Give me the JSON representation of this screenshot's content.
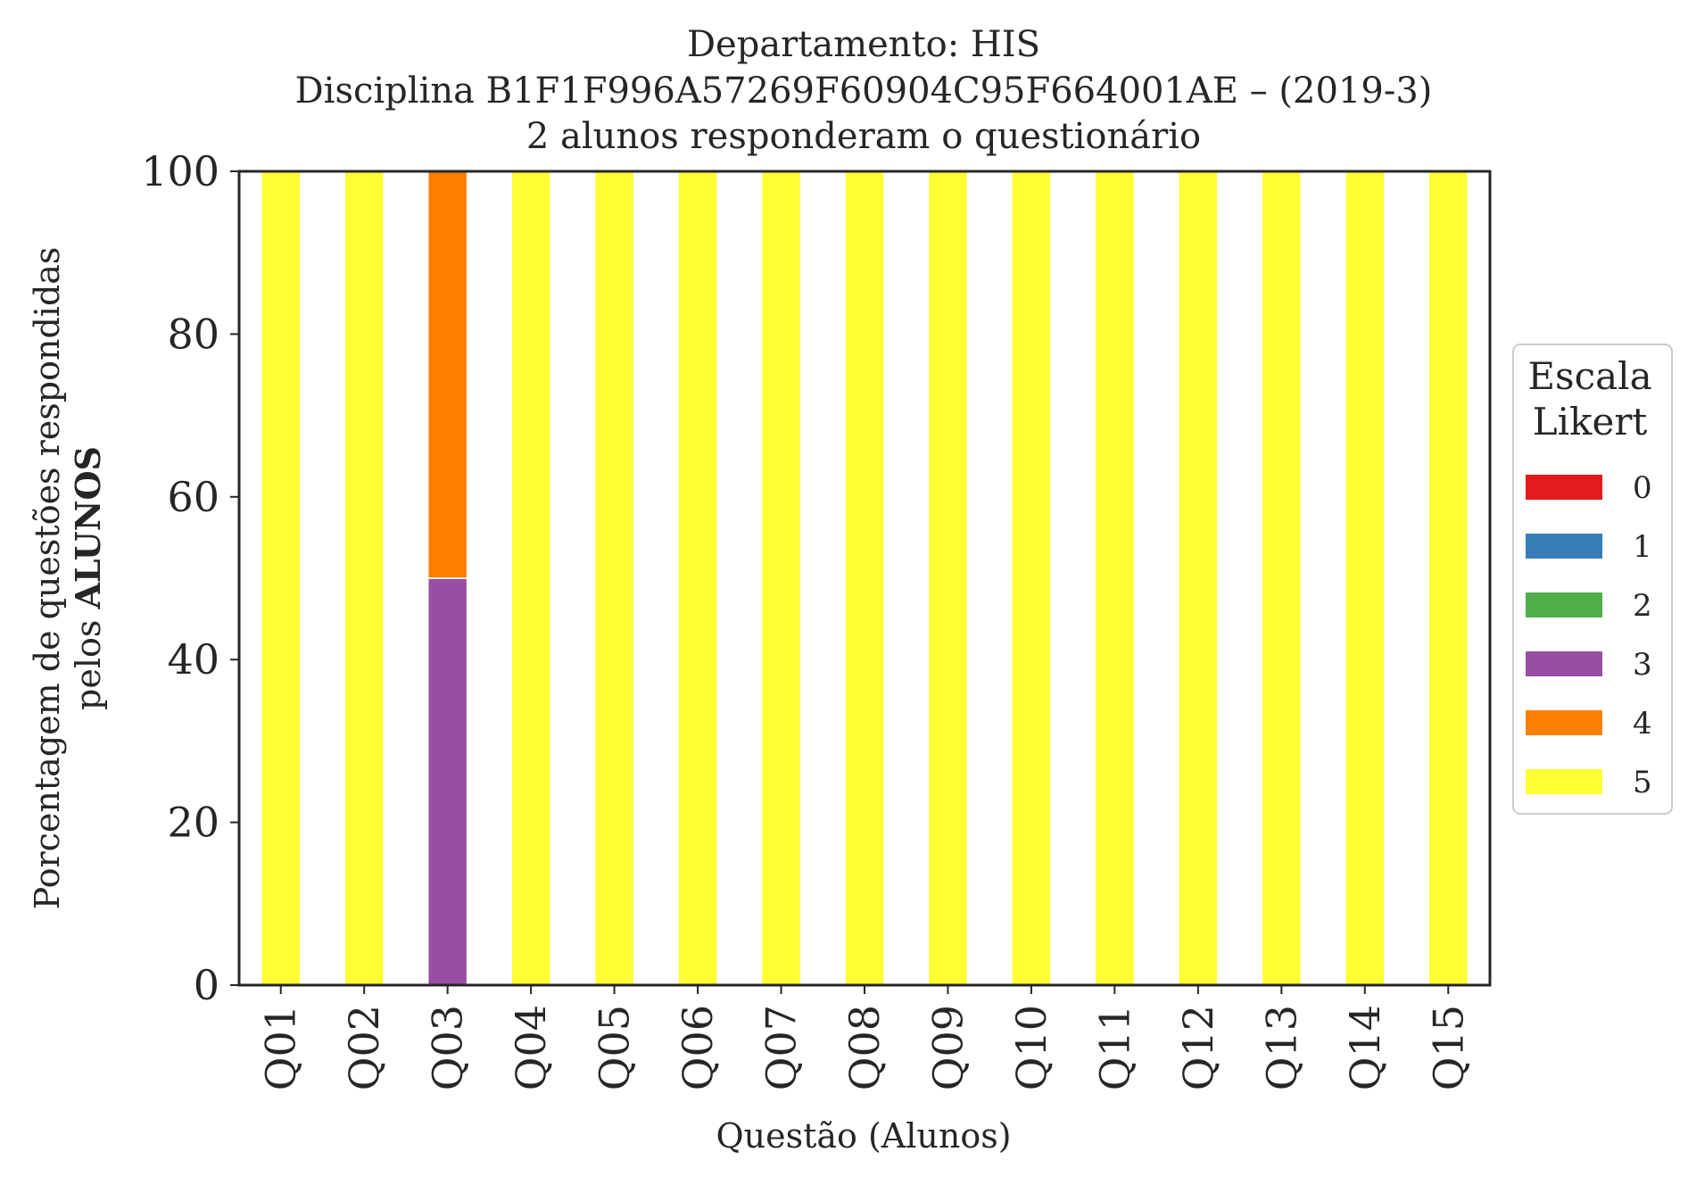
{
  "chart_data": {
    "type": "bar",
    "stacked": true,
    "title": [
      "Departamento: HIS",
      "Disciplina B1F1F996A57269F60904C95F664001AE – (2019-3)",
      "2 alunos responderam o questionário"
    ],
    "xlabel": "Questão (Alunos)",
    "ylabel_line1": "Porcentagem de questões respondidas",
    "ylabel_line2_prefix": "pelos ",
    "ylabel_line2_bold": "ALUNOS",
    "ylim": [
      0,
      100
    ],
    "yticks": [
      "0",
      "20",
      "40",
      "60",
      "80",
      "100"
    ],
    "categories": [
      "Q01",
      "Q02",
      "Q03",
      "Q04",
      "Q05",
      "Q06",
      "Q07",
      "Q08",
      "Q09",
      "Q10",
      "Q11",
      "Q12",
      "Q13",
      "Q14",
      "Q15"
    ],
    "legend": {
      "title": [
        "Escala",
        "Likert"
      ],
      "placement": "right"
    },
    "series": [
      {
        "name": "0",
        "color": "#e41a1c",
        "values": [
          0,
          0,
          0,
          0,
          0,
          0,
          0,
          0,
          0,
          0,
          0,
          0,
          0,
          0,
          0
        ]
      },
      {
        "name": "1",
        "color": "#377eb8",
        "values": [
          0,
          0,
          0,
          0,
          0,
          0,
          0,
          0,
          0,
          0,
          0,
          0,
          0,
          0,
          0
        ]
      },
      {
        "name": "2",
        "color": "#4daf4a",
        "values": [
          0,
          0,
          0,
          0,
          0,
          0,
          0,
          0,
          0,
          0,
          0,
          0,
          0,
          0,
          0
        ]
      },
      {
        "name": "3",
        "color": "#984ea3",
        "values": [
          0,
          0,
          50,
          0,
          0,
          0,
          0,
          0,
          0,
          0,
          0,
          0,
          0,
          0,
          0
        ]
      },
      {
        "name": "4",
        "color": "#ff7f00",
        "values": [
          0,
          0,
          50,
          0,
          0,
          0,
          0,
          0,
          0,
          0,
          0,
          0,
          0,
          0,
          0
        ]
      },
      {
        "name": "5",
        "color": "#ffff33",
        "values": [
          100,
          100,
          0,
          100,
          100,
          100,
          100,
          100,
          100,
          100,
          100,
          100,
          100,
          100,
          100
        ]
      }
    ],
    "grid": false
  }
}
